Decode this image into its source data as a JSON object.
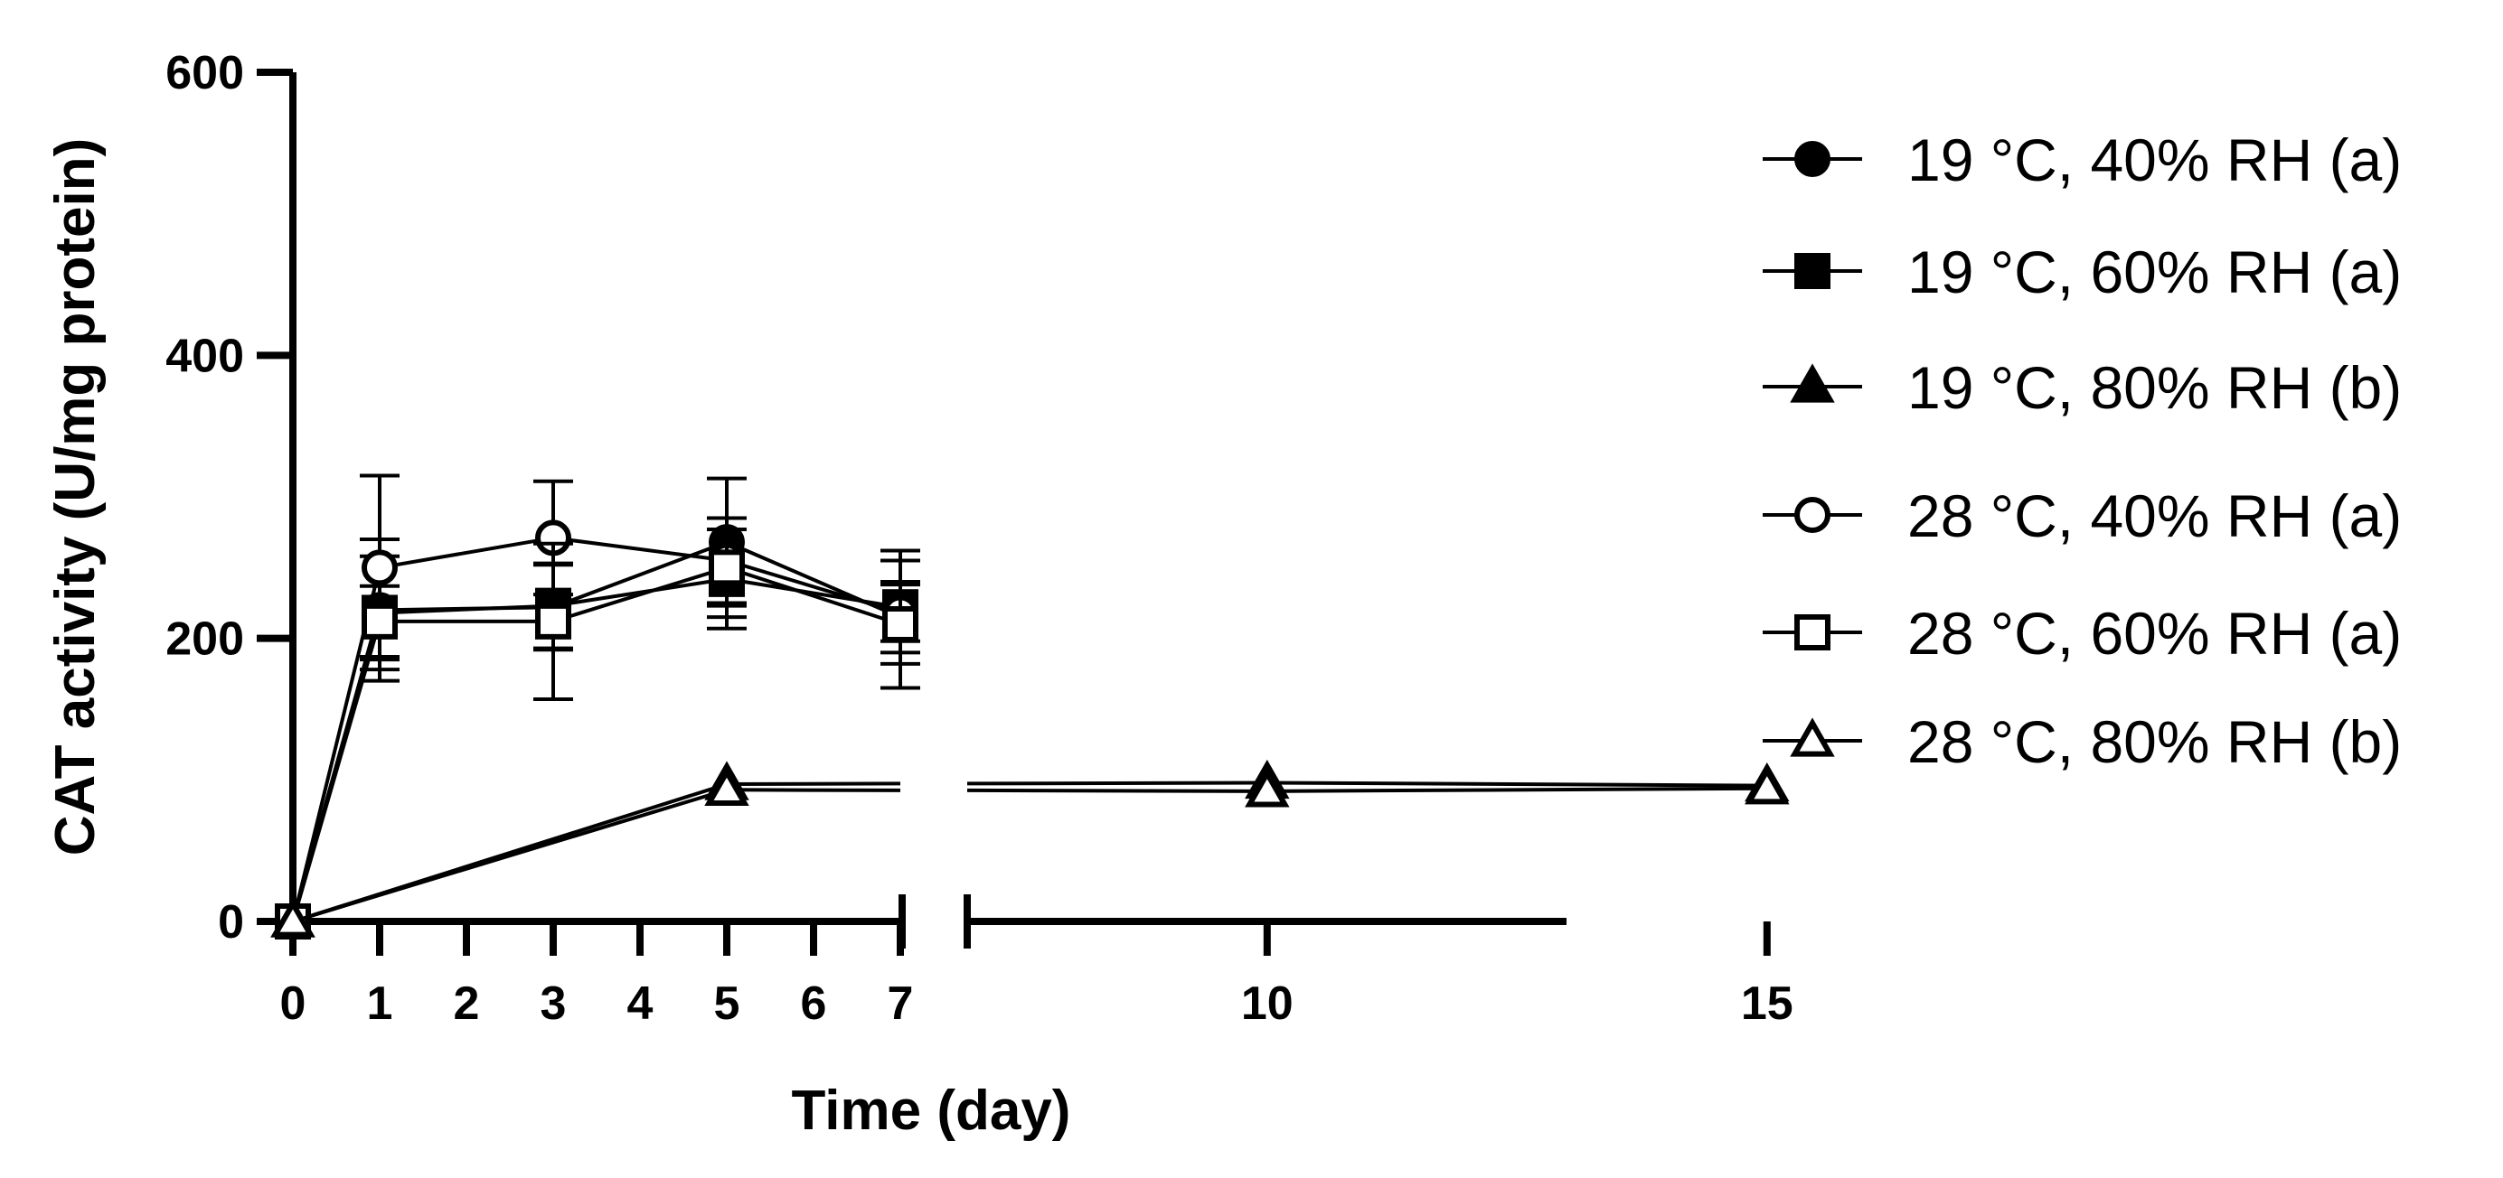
{
  "chart_data": {
    "type": "line",
    "xlabel": "Time (day)",
    "ylabel": "CAT activity (U/mg protein)",
    "ylim": [
      0,
      600
    ],
    "yticks": [
      0,
      200,
      400,
      600
    ],
    "xticks_left": [
      0,
      1,
      2,
      3,
      4,
      5,
      6,
      7
    ],
    "xticks_right": [
      10,
      15
    ],
    "axis_break": "between 7 and 10",
    "legend_position": "right",
    "series": [
      {
        "name": "19 °C, 40% RH (a)",
        "marker": "circle",
        "filled": true,
        "points": [
          {
            "x": 0,
            "y": 0
          },
          {
            "x": 1,
            "y": 220,
            "err": 50
          },
          {
            "x": 3,
            "y": 222,
            "err": 30
          },
          {
            "x": 5,
            "y": 268,
            "err": 45
          },
          {
            "x": 7,
            "y": 215,
            "err": 25
          }
        ]
      },
      {
        "name": "19 °C, 60% RH (a)",
        "marker": "square",
        "filled": true,
        "points": [
          {
            "x": 0,
            "y": 0
          },
          {
            "x": 1,
            "y": 218,
            "err": 40
          },
          {
            "x": 3,
            "y": 223,
            "err": 30
          },
          {
            "x": 5,
            "y": 242,
            "err": 35
          },
          {
            "x": 7,
            "y": 222,
            "err": 40
          }
        ]
      },
      {
        "name": "19 °C, 80% RH (b)",
        "marker": "triangle",
        "filled": true,
        "points": [
          {
            "x": 0,
            "y": 0
          },
          {
            "x": 5,
            "y": 97
          },
          {
            "x": 10,
            "y": 98
          },
          {
            "x": 15,
            "y": 96
          }
        ]
      },
      {
        "name": "28 °C, 40% RH (a)",
        "marker": "circle",
        "filled": false,
        "points": [
          {
            "x": 0,
            "y": 0
          },
          {
            "x": 1,
            "y": 250,
            "err": 65
          },
          {
            "x": 3,
            "y": 271,
            "err": 40
          },
          {
            "x": 5,
            "y": 255,
            "err": 30
          },
          {
            "x": 7,
            "y": 218,
            "err": 20
          }
        ]
      },
      {
        "name": "28 °C, 60% RH (a)",
        "marker": "square",
        "filled": false,
        "points": [
          {
            "x": 0,
            "y": 0
          },
          {
            "x": 1,
            "y": 212,
            "err": 25
          },
          {
            "x": 3,
            "y": 212,
            "err": 55
          },
          {
            "x": 5,
            "y": 250,
            "err": 35
          },
          {
            "x": 7,
            "y": 210,
            "err": 45
          }
        ]
      },
      {
        "name": "28 °C, 80% RH (b)",
        "marker": "triangle",
        "filled": false,
        "points": [
          {
            "x": 0,
            "y": 0
          },
          {
            "x": 5,
            "y": 93
          },
          {
            "x": 10,
            "y": 92
          },
          {
            "x": 15,
            "y": 94
          }
        ]
      }
    ]
  }
}
